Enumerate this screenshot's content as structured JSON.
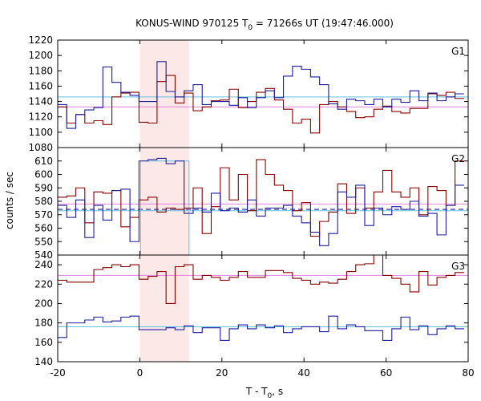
{
  "chart_data": {
    "type": "line",
    "title": "KONUS-WIND 970125 T",
    "title_sub": "0",
    "title_rest": " = 71266s UT (19:47:46.000)",
    "xlabel": "T - T",
    "xlabel_sub": "0",
    "xlabel_rest": ", s",
    "ylabel": "counts / sec",
    "xlim": [
      -20,
      80
    ],
    "xticks": [
      "-20",
      "0",
      "20",
      "40",
      "60",
      "80"
    ],
    "highlight_interval": [
      0,
      12
    ],
    "grid": false,
    "colors": {
      "red": "#8b0000",
      "blue": "#1c1c9c",
      "cyan": "#5fc0e0",
      "pink": "#e080e0",
      "highlight": "#fde8e8"
    },
    "panels": [
      {
        "name": "G1",
        "ylim": [
          1080,
          1220
        ],
        "yticks": [
          "1080",
          "1100",
          "1120",
          "1140",
          "1160",
          "1180",
          "1200",
          "1220"
        ],
        "bin_edges": [
          -20,
          -17.8,
          -15.6,
          -13.4,
          -11.2,
          -9.0,
          -6.8,
          -4.6,
          -2.4,
          -0.2,
          2.0,
          4.2,
          6.4,
          8.6,
          10.8,
          13.0,
          15.2,
          17.4,
          19.6,
          21.8,
          24.0,
          26.2,
          28.4,
          30.6,
          32.8,
          35.0,
          37.2,
          39.4,
          41.6,
          43.8,
          46.0,
          48.2,
          50.4,
          52.6,
          54.8,
          57.0,
          59.2,
          61.4,
          63.6,
          65.8,
          68.0,
          70.2,
          72.4,
          74.6,
          76.8,
          79.0
        ],
        "series": [
          {
            "name": "red",
            "values": [
              1133,
              1112,
              1123,
              1112,
              1115,
              1110,
              1146,
              1151,
              1152,
              1113,
              1112,
              1166,
              1174,
              1138,
              1151,
              1128,
              1133,
              1141,
              1142,
              1156,
              1132,
              1140,
              1152,
              1157,
              1142,
              1130,
              1112,
              1117,
              1099,
              1136,
              1140,
              1133,
              1127,
              1119,
              1120,
              1130,
              1134,
              1127,
              1125,
              1131,
              1131,
              1150,
              1148,
              1152,
              1144
            ]
          },
          {
            "name": "blue",
            "values": [
              1136,
              1105,
              1123,
              1129,
              1132,
              1185,
              1165,
              1152,
              1148,
              1140,
              1140,
              1192,
              1153,
              1146,
              1154,
              1162,
              1136,
              1140,
              1140,
              1135,
              1145,
              1132,
              1145,
              1154,
              1145,
              1173,
              1186,
              1182,
              1172,
              1162,
              1137,
              1130,
              1143,
              1141,
              1136,
              1143,
              1133,
              1143,
              1139,
              1154,
              1141,
              1151,
              1141,
              1146,
              1150
            ]
          }
        ],
        "ref_lines": [
          {
            "color": "cyan",
            "y": 1146
          },
          {
            "color": "pink",
            "y": 1133
          }
        ]
      },
      {
        "name": "G2",
        "ylim": [
          540,
          620
        ],
        "yticks": [
          "540",
          "550",
          "560",
          "570",
          "580",
          "590",
          "600",
          "610"
        ],
        "bin_edges": [
          -20,
          -17.8,
          -15.6,
          -13.4,
          -11.2,
          -9.0,
          -6.8,
          -4.6,
          -2.4,
          -0.2,
          2.0,
          4.2,
          6.4,
          8.6,
          10.8,
          13.0,
          15.2,
          17.4,
          19.6,
          21.8,
          24.0,
          26.2,
          28.4,
          30.6,
          32.8,
          35.0,
          37.2,
          39.4,
          41.6,
          43.8,
          46.0,
          48.2,
          50.4,
          52.6,
          54.8,
          57.0,
          59.2,
          61.4,
          63.6,
          65.8,
          68.0,
          70.2,
          72.4,
          74.6,
          76.8,
          79.0
        ],
        "series": [
          {
            "name": "red",
            "values": [
              583,
              584,
              590,
              564,
              587,
              586,
              588,
              561,
              568,
              581,
              583,
              572,
              575,
              574,
              575,
              590,
              556,
              576,
              605,
              581,
              600,
              573,
              611,
              600,
              592,
              588,
              573,
              579,
              554,
              565,
              572,
              593,
              571,
              590,
              575,
              587,
              603,
              587,
              583,
              590,
              570,
              591,
              588,
              577,
              610
            ]
          },
          {
            "name": "blue",
            "values": [
              577,
              568,
              581,
              553,
              577,
              566,
              588,
              589,
              550,
              610,
              611,
              612,
              608,
              610,
              571,
              575,
              572,
              586,
              573,
              575,
              572,
              581,
              569,
              575,
              575,
              577,
              569,
              564,
              557,
              547,
              556,
              587,
              583,
              592,
              562,
              575,
              570,
              576,
              574,
              580,
              569,
              571,
              555,
              577,
              592
            ]
          }
        ],
        "ref_lines": [
          {
            "color": "cyan",
            "y": 573
          },
          {
            "color": "pink",
            "y": 578
          },
          {
            "color": "blue",
            "y": 574,
            "dashed": true
          }
        ],
        "fit_box": {
          "x0": 0.2,
          "x1": 12.0,
          "y": 610,
          "color": "cyan"
        }
      },
      {
        "name": "G3",
        "ylim": [
          140,
          250
        ],
        "yticks": [
          "140",
          "160",
          "180",
          "200",
          "220",
          "240"
        ],
        "bin_edges": [
          -20,
          -17.8,
          -15.6,
          -13.4,
          -11.2,
          -9.0,
          -6.8,
          -4.6,
          -2.4,
          -0.2,
          2.0,
          4.2,
          6.4,
          8.6,
          10.8,
          13.0,
          15.2,
          17.4,
          19.6,
          21.8,
          24.0,
          26.2,
          28.4,
          30.6,
          32.8,
          35.0,
          37.2,
          39.4,
          41.6,
          43.8,
          46.0,
          48.2,
          50.4,
          52.6,
          54.8,
          57.0,
          59.2,
          61.4,
          63.6,
          65.8,
          68.0,
          70.2,
          72.4,
          74.6,
          76.8,
          79.0
        ],
        "series": [
          {
            "name": "red",
            "values": [
              224,
              222,
              222,
              222,
              235,
              237,
              240,
              238,
              240,
              225,
              228,
              233,
              200,
              238,
              240,
              225,
              229,
              227,
              224,
              227,
              233,
              227,
              227,
              234,
              234,
              232,
              226,
              224,
              220,
              222,
              221,
              225,
              233,
              240,
              241,
              250,
              229,
              226,
              220,
              212,
              233,
              219,
              227,
              229,
              232
            ]
          },
          {
            "name": "blue",
            "values": [
              165,
              180,
              180,
              183,
              186,
              181,
              182,
              186,
              187,
              173,
              173,
              173,
              175,
              173,
              177,
              170,
              175,
              175,
              162,
              174,
              178,
              174,
              178,
              175,
              177,
              170,
              174,
              176,
              176,
              171,
              187,
              174,
              178,
              176,
              172,
              172,
              162,
              174,
              186,
              173,
              177,
              168,
              174,
              177,
              174
            ]
          }
        ],
        "ref_lines": [
          {
            "color": "cyan",
            "y": 176
          },
          {
            "color": "pink",
            "y": 229
          }
        ]
      }
    ]
  }
}
